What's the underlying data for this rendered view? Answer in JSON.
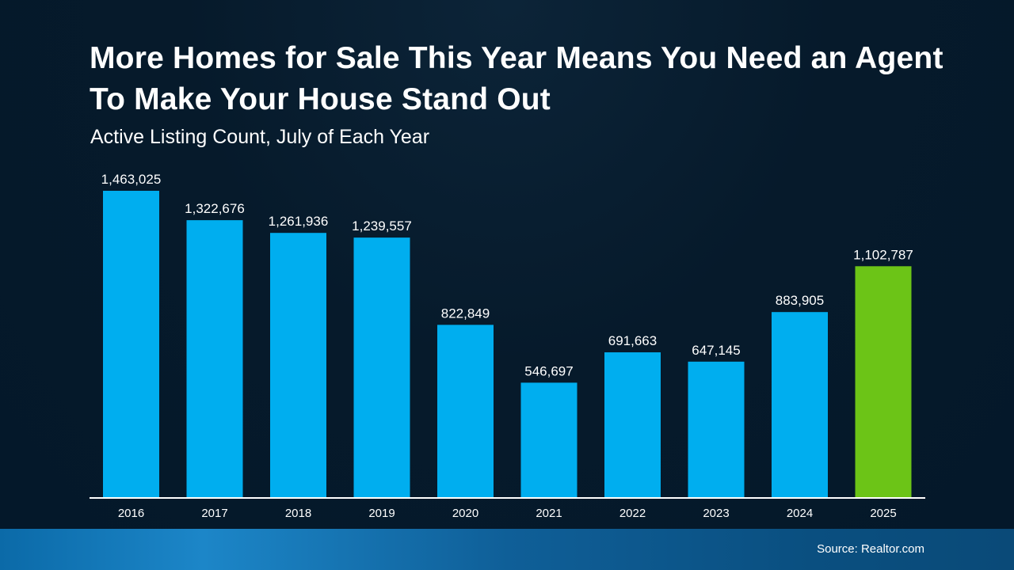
{
  "header": {
    "title": "More Homes for Sale This Year Means You Need an Agent To Make Your House Stand Out",
    "subtitle": "Active Listing Count, July of Each Year"
  },
  "footer": {
    "source": "Source: Realtor.com"
  },
  "chart_data": {
    "type": "bar",
    "title": "More Homes for Sale This Year Means You Need an Agent To Make Your House Stand Out",
    "subtitle": "Active Listing Count, July of Each Year",
    "xlabel": "",
    "ylabel": "",
    "categories": [
      "2016",
      "2017",
      "2018",
      "2019",
      "2020",
      "2021",
      "2022",
      "2023",
      "2024",
      "2025"
    ],
    "values": [
      1463025,
      1322676,
      1261936,
      1239557,
      822849,
      546697,
      691663,
      647145,
      883905,
      1102787
    ],
    "data_labels": [
      "1,463,025",
      "1,322,676",
      "1,261,936",
      "1,239,557",
      "822,849",
      "546,697",
      "691,663",
      "647,145",
      "883,905",
      "1,102,787"
    ],
    "ylim": [
      0,
      1463025
    ],
    "grid": false,
    "legend": "none",
    "colors": {
      "default_bar": "#00aeef",
      "highlight_bar": "#6cc417",
      "axis": "#ffffff",
      "text": "#ffffff"
    },
    "highlight_index": 9
  }
}
